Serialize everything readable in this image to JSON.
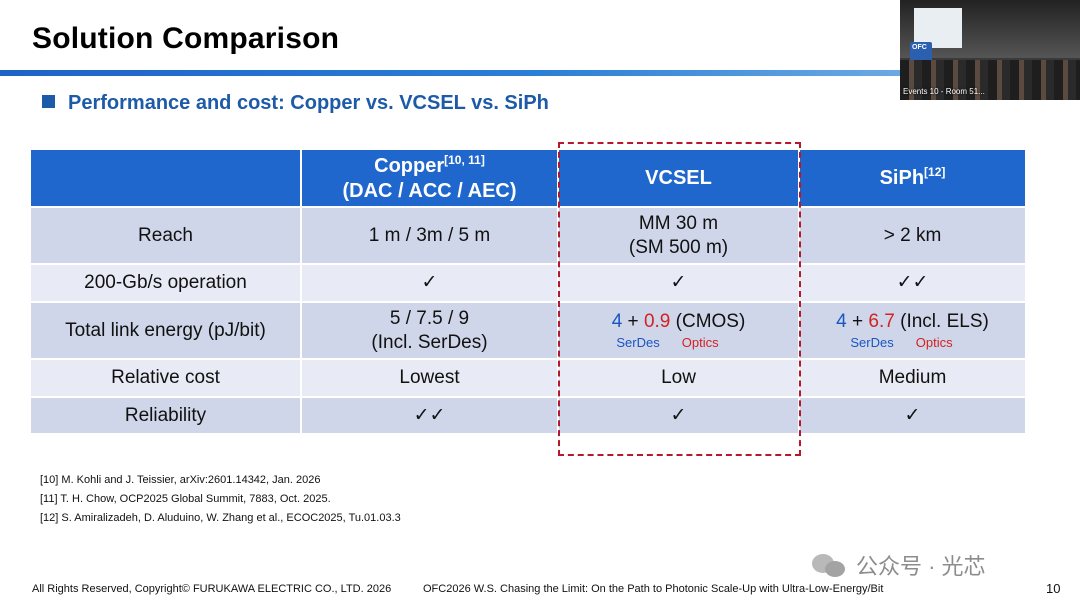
{
  "slide": {
    "title": "Solution Comparison",
    "subtitle": "Performance and cost: Copper vs. VCSEL vs. SiPh",
    "page_number": "10"
  },
  "video": {
    "podium_logo": "OFC",
    "caption": "Events 10 - Room 51..."
  },
  "table": {
    "headers": {
      "blank": "",
      "copper_name": "Copper",
      "copper_ref": "[10, 11]",
      "copper_sub": "(DAC / ACC / AEC)",
      "vcsel": "VCSEL",
      "siph_name": "SiPh",
      "siph_ref": "[12]"
    },
    "rows": {
      "reach": {
        "label": "Reach",
        "copper": "1 m / 3m / 5 m",
        "vcsel_line1": "MM 30 m",
        "vcsel_line2": "(SM 500 m)",
        "siph": "> 2 km"
      },
      "op": {
        "label": "200-Gb/s operation",
        "copper": "✓",
        "vcsel": "✓",
        "siph": "✓✓"
      },
      "energy": {
        "label": "Total link energy (pJ/bit)",
        "copper_line1": "5 / 7.5 / 9",
        "copper_line2": "(Incl. SerDes)",
        "vcsel_serdes": "4",
        "vcsel_plus": "+",
        "vcsel_optics": "0.9",
        "vcsel_note": "(CMOS)",
        "siph_serdes": "4",
        "siph_plus": "+",
        "siph_optics": "6.7",
        "siph_note": "(Incl. ELS)",
        "serdes_label": "SerDes",
        "optics_label": "Optics"
      },
      "cost": {
        "label": "Relative cost",
        "copper": "Lowest",
        "vcsel": "Low",
        "siph": "Medium"
      },
      "reliability": {
        "label": "Reliability",
        "copper": "✓✓",
        "vcsel": "✓",
        "siph": "✓"
      }
    }
  },
  "references": [
    "[10] M. Kohli and J. Teissier, arXiv:2601.14342, Jan. 2026",
    "[11] T. H. Chow, OCP2025 Global Summit, 7883, Oct. 2025.",
    "[12] S. Amiralizadeh, D. Aluduino, W. Zhang et al., ECOC2025, Tu.01.03.3"
  ],
  "footer": {
    "copyright": "All Rights Reserved, Copyright© FURUKAWA ELECTRIC CO., LTD. 2026",
    "event": "OFC2026 W.S. Chasing the Limit: On the Path to Photonic Scale-Up with Ultra-Low-Energy/Bit"
  },
  "watermark": {
    "text": "公众号 · 光芯",
    "icon": "wechat-icon"
  },
  "colors": {
    "header_blue": "#1f67cc",
    "row_dark": "#cfd6e9",
    "row_light": "#e8ebf5",
    "serdes_blue": "#1a56c2",
    "optics_red": "#d32222",
    "highlight_dash": "#b5182b"
  }
}
